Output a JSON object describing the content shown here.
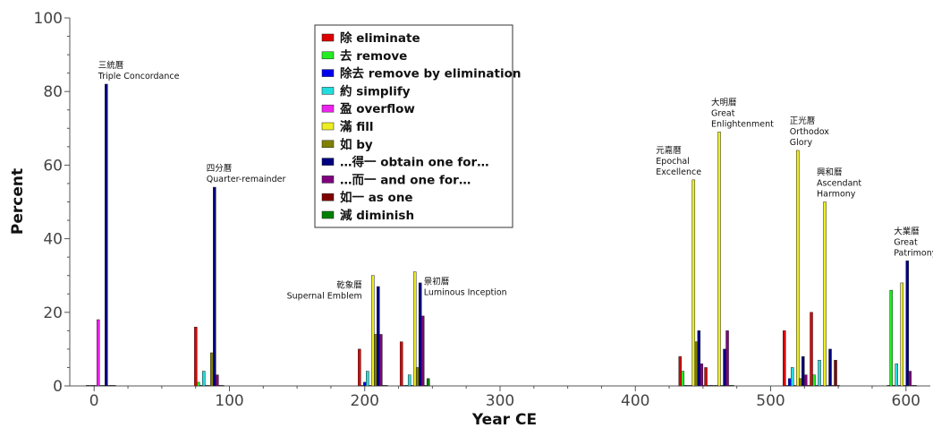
{
  "chart_data": {
    "type": "bar",
    "xlabel": "Year CE",
    "ylabel": "Percent",
    "xlim": [
      -18,
      618
    ],
    "ylim": [
      0,
      100
    ],
    "x_ticks": [
      0,
      100,
      200,
      300,
      400,
      500,
      600
    ],
    "y_ticks": [
      0,
      20,
      40,
      60,
      80,
      100
    ],
    "legend_position": "top-center",
    "series": [
      {
        "key": "chu",
        "name": "除 eliminate",
        "color": "#dd0000"
      },
      {
        "key": "qu",
        "name": "去 remove",
        "color": "#22ee22"
      },
      {
        "key": "chuqu",
        "name": "除去 remove by elimination",
        "color": "#0000ee"
      },
      {
        "key": "yue",
        "name": "約 simplify",
        "color": "#22dddd"
      },
      {
        "key": "ying",
        "name": "盈 overflow",
        "color": "#ee22ee"
      },
      {
        "key": "man",
        "name": "滿 fill",
        "color": "#eeee22"
      },
      {
        "key": "ru",
        "name": "如 by",
        "color": "#808000"
      },
      {
        "key": "deyi",
        "name": "…得一 obtain one for…",
        "color": "#000080"
      },
      {
        "key": "eryi",
        "name": "…而一 and one for…",
        "color": "#800080"
      },
      {
        "key": "ruyi",
        "name": "如一 as one",
        "color": "#800000"
      },
      {
        "key": "jian",
        "name": "減 diminish",
        "color": "#008000"
      }
    ],
    "calendars": [
      {
        "year": 5,
        "label_zh": "三統曆",
        "label_en": "Triple Concordance",
        "values": {
          "chu": 0,
          "qu": 0,
          "chuqu": 0,
          "yue": 0,
          "ying": 18,
          "man": 0,
          "ru": 0,
          "deyi": 82,
          "eryi": 0,
          "ruyi": 0,
          "jian": 0
        }
      },
      {
        "year": 85,
        "label_zh": "四分曆",
        "label_en": "Quarter-remainder",
        "values": {
          "chu": 16,
          "qu": 1,
          "chuqu": 0,
          "yue": 4,
          "ying": 0,
          "man": 0,
          "ru": 9,
          "deyi": 54,
          "eryi": 3,
          "ruyi": 0,
          "jian": 0
        }
      },
      {
        "year": 206,
        "label_zh": "乾象曆",
        "label_en": "Supernal Emblem",
        "values": {
          "chu": 10,
          "qu": 0,
          "chuqu": 1,
          "yue": 4,
          "ying": 0,
          "man": 30,
          "ru": 14,
          "deyi": 27,
          "eryi": 14,
          "ruyi": 0,
          "jian": 0
        }
      },
      {
        "year": 237,
        "label_zh": "景初曆",
        "label_en": "Luminous Inception",
        "values": {
          "chu": 12,
          "qu": 0,
          "chuqu": 0,
          "yue": 3,
          "ying": 0,
          "man": 31,
          "ru": 5,
          "deyi": 28,
          "eryi": 19,
          "ruyi": 0,
          "jian": 2
        }
      },
      {
        "year": 443,
        "label_zh": "元嘉曆",
        "label_en": "Epochal Excellence",
        "values": {
          "chu": 8,
          "qu": 4,
          "chuqu": 0,
          "yue": 0,
          "ying": 0,
          "man": 56,
          "ru": 12,
          "deyi": 15,
          "eryi": 6,
          "ruyi": 0,
          "jian": 0
        }
      },
      {
        "year": 462,
        "label_zh": "大明曆",
        "label_en": "Great Enlightenment",
        "values": {
          "chu": 5,
          "qu": 0,
          "chuqu": 0,
          "yue": 0,
          "ying": 0,
          "man": 69,
          "ru": 0,
          "deyi": 10,
          "eryi": 15,
          "ruyi": 0,
          "jian": 0
        }
      },
      {
        "year": 520,
        "label_zh": "正光曆",
        "label_en": "Orthodox Glory",
        "values": {
          "chu": 15,
          "qu": 0,
          "chuqu": 2,
          "yue": 5,
          "ying": 0,
          "man": 64,
          "ru": 2,
          "deyi": 8,
          "eryi": 3,
          "ruyi": 0,
          "jian": 0
        }
      },
      {
        "year": 540,
        "label_zh": "興和曆",
        "label_en": "Ascendant Harmony",
        "values": {
          "chu": 20,
          "qu": 3,
          "chuqu": 0,
          "yue": 7,
          "ying": 0,
          "man": 50,
          "ru": 0,
          "deyi": 10,
          "eryi": 0,
          "ruyi": 7,
          "jian": 0
        }
      },
      {
        "year": 597,
        "label_zh": "大業曆",
        "label_en": "Great Patrimony",
        "values": {
          "chu": 0,
          "qu": 26,
          "chuqu": 0,
          "yue": 6,
          "ying": 0,
          "man": 28,
          "ru": 0,
          "deyi": 34,
          "eryi": 4,
          "ruyi": 0,
          "jian": 0
        }
      }
    ]
  }
}
